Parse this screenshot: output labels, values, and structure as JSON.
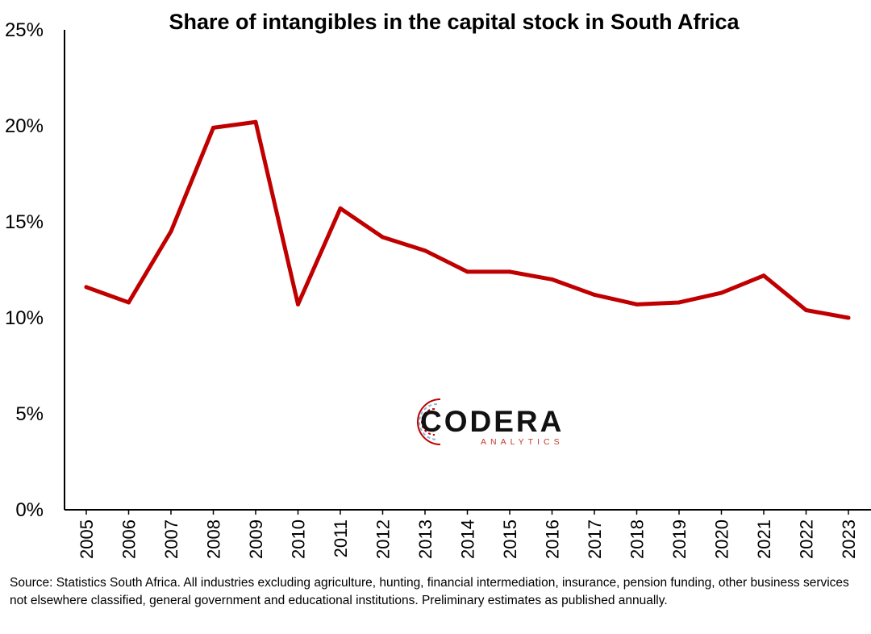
{
  "chart_data": {
    "type": "line",
    "title": "Share of intangibles in the capital stock in South Africa",
    "xlabel": "",
    "ylabel": "",
    "categories": [
      "2005",
      "2006",
      "2007",
      "2008",
      "2009",
      "2010",
      "2011",
      "2012",
      "2013",
      "2014",
      "2015",
      "2016",
      "2017",
      "2018",
      "2019",
      "2020",
      "2021",
      "2022",
      "2023"
    ],
    "series": [
      {
        "values": [
          11.6,
          10.8,
          14.5,
          19.9,
          20.2,
          10.7,
          15.7,
          14.2,
          13.5,
          12.4,
          12.4,
          12.0,
          11.2,
          10.7,
          10.8,
          11.3,
          12.2,
          10.4,
          10.0
        ]
      }
    ],
    "ylim": [
      0,
      25
    ],
    "yticks": [
      "0%",
      "5%",
      "10%",
      "15%",
      "20%",
      "25%"
    ],
    "grid": false,
    "legend": "none",
    "line_color": "#c00000"
  },
  "logo": {
    "main": "CODERA",
    "sub": "ANALYTICS"
  },
  "source_note": "Source: Statistics South Africa. All industries excluding agriculture, hunting, financial intermediation, insurance, pension funding, other business services not elsewhere classified, general government and educational institutions. Preliminary estimates as published annually."
}
